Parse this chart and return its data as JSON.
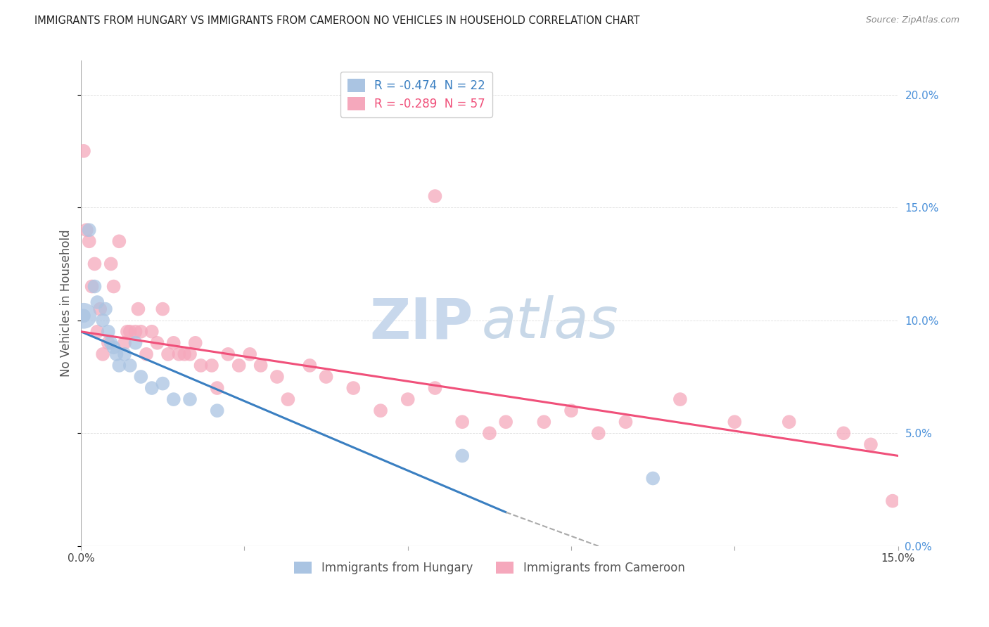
{
  "title": "IMMIGRANTS FROM HUNGARY VS IMMIGRANTS FROM CAMEROON NO VEHICLES IN HOUSEHOLD CORRELATION CHART",
  "source": "Source: ZipAtlas.com",
  "ylabel": "No Vehicles in Household",
  "ytick_vals": [
    0.0,
    5.0,
    10.0,
    15.0,
    20.0
  ],
  "xlim": [
    0.0,
    15.0
  ],
  "ylim": [
    0.0,
    21.5
  ],
  "legend_hungary": "R = -0.474  N = 22",
  "legend_cameroon": "R = -0.289  N = 57",
  "hungary_color": "#aac4e2",
  "cameroon_color": "#f5a8bc",
  "hungary_line_color": "#3a7fc1",
  "cameroon_line_color": "#f0507a",
  "hungary_scatter_x": [
    0.05,
    0.15,
    0.25,
    0.3,
    0.4,
    0.45,
    0.5,
    0.55,
    0.6,
    0.65,
    0.7,
    0.8,
    0.9,
    1.0,
    1.1,
    1.3,
    1.5,
    1.7,
    2.0,
    2.5,
    7.0,
    10.5
  ],
  "hungary_scatter_y": [
    10.2,
    14.0,
    11.5,
    10.8,
    10.0,
    10.5,
    9.5,
    9.0,
    8.8,
    8.5,
    8.0,
    8.5,
    8.0,
    9.0,
    7.5,
    7.0,
    7.2,
    6.5,
    6.5,
    6.0,
    4.0,
    3.0
  ],
  "hungary_large_x": [
    0.05
  ],
  "hungary_large_y": [
    10.2
  ],
  "cameroon_scatter_x": [
    0.05,
    0.1,
    0.15,
    0.2,
    0.25,
    0.3,
    0.35,
    0.4,
    0.5,
    0.55,
    0.6,
    0.7,
    0.8,
    0.85,
    0.9,
    1.0,
    1.05,
    1.1,
    1.2,
    1.3,
    1.4,
    1.5,
    1.6,
    1.7,
    1.8,
    1.9,
    2.0,
    2.1,
    2.2,
    2.4,
    2.5,
    2.7,
    2.9,
    3.1,
    3.3,
    3.6,
    3.8,
    4.2,
    4.5,
    5.0,
    5.5,
    6.0,
    6.5,
    7.0,
    7.5,
    8.5,
    9.0,
    9.5,
    10.0,
    11.0,
    12.0,
    13.0,
    14.0,
    14.5,
    14.9,
    6.5,
    7.8
  ],
  "cameroon_scatter_y": [
    17.5,
    14.0,
    13.5,
    11.5,
    12.5,
    9.5,
    10.5,
    8.5,
    9.0,
    12.5,
    11.5,
    13.5,
    9.0,
    9.5,
    9.5,
    9.5,
    10.5,
    9.5,
    8.5,
    9.5,
    9.0,
    10.5,
    8.5,
    9.0,
    8.5,
    8.5,
    8.5,
    9.0,
    8.0,
    8.0,
    7.0,
    8.5,
    8.0,
    8.5,
    8.0,
    7.5,
    6.5,
    8.0,
    7.5,
    7.0,
    6.0,
    6.5,
    7.0,
    5.5,
    5.0,
    5.5,
    6.0,
    5.0,
    5.5,
    6.5,
    5.5,
    5.5,
    5.0,
    4.5,
    2.0,
    15.5,
    5.5
  ],
  "hungary_line_x0": 0.0,
  "hungary_line_y0": 9.5,
  "hungary_line_x1": 7.8,
  "hungary_line_y1": 1.5,
  "hungary_dash_x0": 7.8,
  "hungary_dash_y0": 1.5,
  "hungary_dash_x1": 9.5,
  "hungary_dash_y1": 0.0,
  "cameroon_line_x0": 0.0,
  "cameroon_line_y0": 9.5,
  "cameroon_line_x1": 15.0,
  "cameroon_line_y1": 4.0,
  "background_color": "#ffffff",
  "grid_color": "#dddddd"
}
